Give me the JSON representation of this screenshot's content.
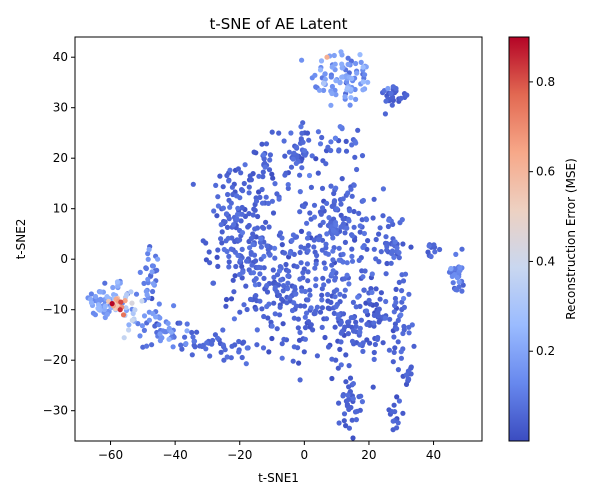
{
  "chart_data": {
    "type": "scatter",
    "title": "t-SNE of AE Latent",
    "xlabel": "t-SNE1",
    "ylabel": "t-SNE2",
    "xlim": [
      -71,
      55
    ],
    "ylim": [
      -36,
      44
    ],
    "xticks": [
      -60,
      -40,
      -20,
      0,
      20,
      40
    ],
    "yticks": [
      -30,
      -20,
      -10,
      0,
      10,
      20,
      30,
      40
    ],
    "colorbar": {
      "label": "Reconstruction Error (MSE)",
      "range": [
        0.0,
        0.9
      ],
      "ticks": [
        0.2,
        0.4,
        0.6,
        0.8
      ],
      "colormap": "coolwarm",
      "stops": [
        "#3b4cc0",
        "#6788ee",
        "#9abbff",
        "#c9d7f0",
        "#edd1c2",
        "#f7a889",
        "#e26952",
        "#b40426"
      ]
    },
    "grid": false,
    "legend": "none",
    "clusters": [
      {
        "cx": 12,
        "cy": 36,
        "sx": 5,
        "sy": 3,
        "n": 90,
        "err": 0.17,
        "errsd": 0.06
      },
      {
        "cx": 27,
        "cy": 32,
        "sx": 1.6,
        "sy": 1.5,
        "n": 22,
        "err": 0.05,
        "errsd": 0.02
      },
      {
        "cx": 31,
        "cy": 32.5,
        "sx": 0.8,
        "sy": 0.4,
        "n": 5,
        "err": 0.05,
        "errsd": 0.02
      },
      {
        "cx": 10,
        "cy": 23,
        "sx": 4,
        "sy": 2,
        "n": 25,
        "err": 0.07,
        "errsd": 0.03
      },
      {
        "cx": -11,
        "cy": 18,
        "sx": 5,
        "sy": 3,
        "n": 45,
        "err": 0.05,
        "errsd": 0.02
      },
      {
        "cx": -1,
        "cy": 22,
        "sx": 2,
        "sy": 2.5,
        "n": 30,
        "err": 0.05,
        "errsd": 0.02
      },
      {
        "cx": -20,
        "cy": 6,
        "sx": 5,
        "sy": 6,
        "n": 160,
        "err": 0.05,
        "errsd": 0.02
      },
      {
        "cx": -8,
        "cy": -6,
        "sx": 7,
        "sy": 7,
        "n": 170,
        "err": 0.05,
        "errsd": 0.02
      },
      {
        "cx": 10,
        "cy": 5,
        "sx": 7,
        "sy": 7,
        "n": 190,
        "err": 0.06,
        "errsd": 0.02
      },
      {
        "cx": 15,
        "cy": -12,
        "sx": 8,
        "sy": 5,
        "n": 140,
        "err": 0.05,
        "errsd": 0.02
      },
      {
        "cx": 27,
        "cy": 3,
        "sx": 2.5,
        "sy": 2.5,
        "n": 40,
        "err": 0.05,
        "errsd": 0.02
      },
      {
        "cx": 29,
        "cy": -12,
        "sx": 3,
        "sy": 5,
        "n": 40,
        "err": 0.05,
        "errsd": 0.02
      },
      {
        "cx": 32,
        "cy": -23,
        "sx": 0.7,
        "sy": 1.3,
        "n": 12,
        "err": 0.05,
        "errsd": 0.02
      },
      {
        "cx": 28,
        "cy": -31,
        "sx": 1,
        "sy": 1.8,
        "n": 15,
        "err": 0.05,
        "errsd": 0.02
      },
      {
        "cx": 14,
        "cy": -28,
        "sx": 1.5,
        "sy": 2.5,
        "n": 35,
        "err": 0.05,
        "errsd": 0.02
      },
      {
        "cx": 39,
        "cy": 2,
        "sx": 1,
        "sy": 1,
        "n": 10,
        "err": 0.05,
        "errsd": 0.02
      },
      {
        "cx": 47,
        "cy": -3,
        "sx": 1.2,
        "sy": 2,
        "n": 30,
        "err": 0.1,
        "errsd": 0.04
      },
      {
        "cx": -48,
        "cy": -3,
        "sx": 1.5,
        "sy": 3,
        "n": 30,
        "err": 0.12,
        "errsd": 0.05
      },
      {
        "cx": -43,
        "cy": -14,
        "sx": 4,
        "sy": 2,
        "n": 50,
        "err": 0.12,
        "errsd": 0.05
      },
      {
        "cx": -28,
        "cy": -17,
        "sx": 6,
        "sy": 1,
        "n": 40,
        "err": 0.06,
        "errsd": 0.02
      },
      {
        "cx": -62,
        "cy": -8.5,
        "sx": 2.5,
        "sy": 1.3,
        "n": 55,
        "err": 0.17,
        "errsd": 0.05
      },
      {
        "cx": -59,
        "cy": -8.8,
        "sx": 1.3,
        "sy": 0.8,
        "n": 14,
        "err": 0.6,
        "errsd": 0.12
      },
      {
        "cx": -54,
        "cy": -9,
        "sx": 1.5,
        "sy": 2.5,
        "n": 20,
        "err": 0.3,
        "errsd": 0.1
      },
      {
        "cx": -58,
        "cy": -5,
        "sx": 1,
        "sy": 0.5,
        "n": 6,
        "err": 0.2,
        "errsd": 0.05
      }
    ],
    "points": [
      {
        "x": -59.5,
        "y": -8.8,
        "err": 0.9
      },
      {
        "x": -57,
        "y": -10,
        "err": 0.85
      },
      {
        "x": -56,
        "y": -11,
        "err": 0.75
      },
      {
        "x": -55.5,
        "y": -8.2,
        "err": 0.65
      },
      {
        "x": -56.5,
        "y": -9.5,
        "err": 0.7
      },
      {
        "x": 7,
        "y": 40,
        "err": 0.62
      }
    ]
  }
}
